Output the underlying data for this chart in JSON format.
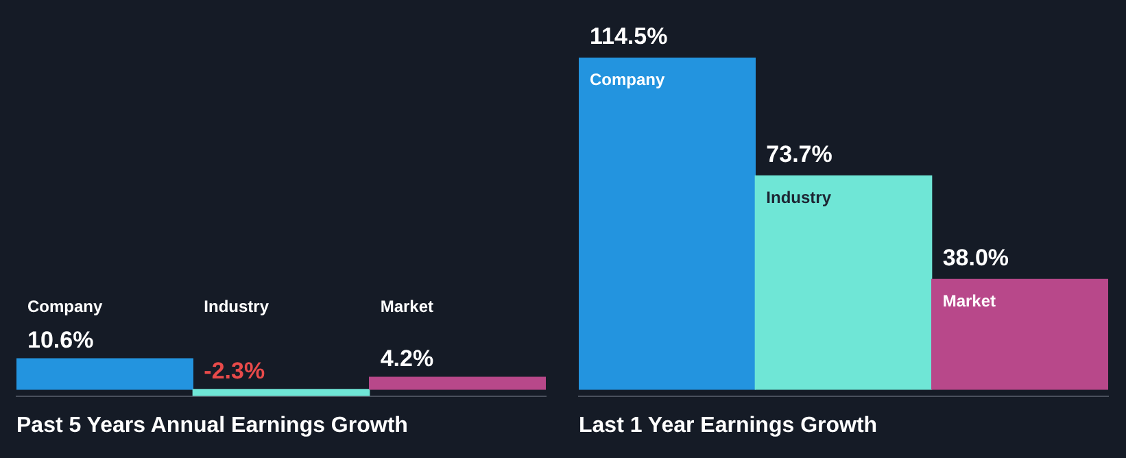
{
  "chart_data": [
    {
      "type": "bar",
      "title": "Past 5 Years Annual Earnings Growth",
      "categories": [
        "Company",
        "Industry",
        "Market"
      ],
      "values": [
        10.6,
        -2.3,
        4.2
      ],
      "colors": [
        "#2394df",
        "#6fe6d6",
        "#b8488a"
      ],
      "value_labels": [
        "10.6%",
        "-2.3%",
        "4.2%"
      ]
    },
    {
      "type": "bar",
      "title": "Last 1 Year Earnings Growth",
      "categories": [
        "Company",
        "Industry",
        "Market"
      ],
      "values": [
        114.5,
        73.7,
        38.0
      ],
      "colors": [
        "#2394df",
        "#6fe6d6",
        "#b8488a"
      ],
      "value_labels": [
        "114.5%",
        "73.7%",
        "38.0%"
      ]
    }
  ]
}
